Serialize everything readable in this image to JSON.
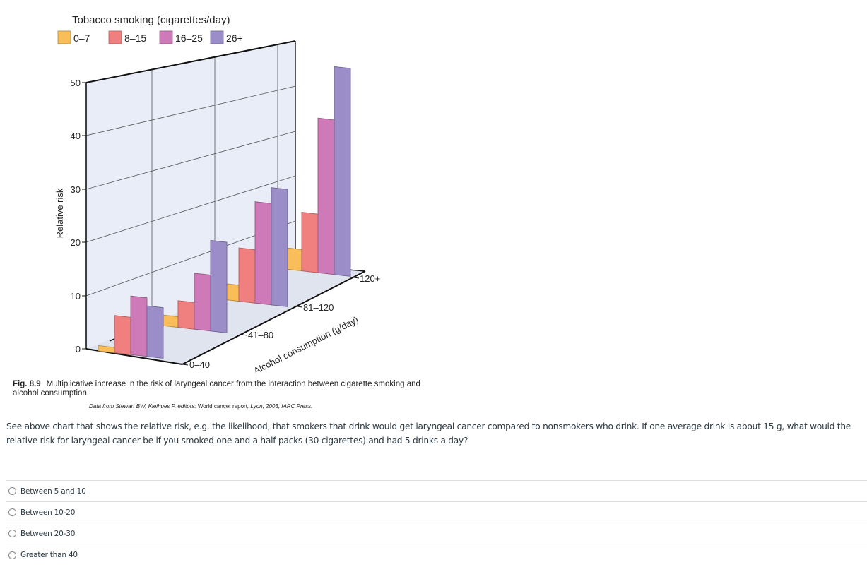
{
  "chart_data": {
    "type": "bar",
    "subtype": "3d-grouped-bar",
    "title": "Tobacco smoking (cigarettes/day)",
    "legend_title": "Tobacco smoking (cigarettes/day)",
    "legend_position": "top-left",
    "ylabel": "Relative risk",
    "xlabel": "Alcohol consumption (g/day)",
    "yticks": [
      "0",
      "10",
      "20",
      "30",
      "40",
      "50"
    ],
    "ylim": [
      0,
      50
    ],
    "grid": true,
    "categories": [
      "0–40",
      "41–80",
      "81–120",
      "120+"
    ],
    "series": [
      {
        "name": "0–7",
        "color": "#f9bd5a",
        "values": [
          1,
          2,
          3,
          4
        ]
      },
      {
        "name": "8–15",
        "color": "#f08080",
        "values": [
          7,
          5,
          10,
          11
        ]
      },
      {
        "name": "16–25",
        "color": "#cf7ab8",
        "values": [
          11,
          10.5,
          19,
          29
        ]
      },
      {
        "name": "26+",
        "color": "#9b8dc7",
        "values": [
          9.5,
          17,
          22,
          39
        ]
      }
    ]
  },
  "legend": {
    "title": "Tobacco smoking (cigarettes/day)",
    "items": [
      {
        "label": "0–7",
        "color": "#f9bd5a"
      },
      {
        "label": "8–15",
        "color": "#f08080"
      },
      {
        "label": "16–25",
        "color": "#cf7ab8"
      },
      {
        "label": "26+",
        "color": "#9b8dc7"
      }
    ]
  },
  "axis": {
    "y_label": "Relative risk",
    "y_ticks": [
      "0",
      "10",
      "20",
      "30",
      "40",
      "50"
    ],
    "x_label": "Alcohol consumption (g/day)",
    "x_ticks": [
      "0–40",
      "41–80",
      "81–120",
      "120+"
    ]
  },
  "caption": {
    "fig_label": "Fig. 8.9",
    "text": "Multiplicative increase in the risk of laryngeal cancer from the interaction between cigarette smoking and alcohol consumption.",
    "source_prefix": "Data from Stewart BW, Kleihues P, editors: ",
    "source_title": "World cancer report",
    "source_suffix": ", Lyon, 2003, IARC Press."
  },
  "question": {
    "text": "See above chart that shows the relative risk, e.g. the likelihood, that smokers that drink would get laryngeal cancer compared to nonsmokers who drink. If one average drink is about 15 g, what would the relative risk for laryngeal cancer be if you smoked one and a half packs (30 cigarettes) and had 5 drinks a day?"
  },
  "answers": [
    {
      "label": "Between 5 and 10",
      "selected": false
    },
    {
      "label": "Between 10-20",
      "selected": false
    },
    {
      "label": "Between 20-30",
      "selected": false
    },
    {
      "label": "Greater than 40",
      "selected": false
    }
  ],
  "colors": {
    "wall": "#e9edf8",
    "floor": "#dfe4ee",
    "axis_line": "#111111",
    "grid_line": "#444444",
    "bar_stroke": "#6b5a7a"
  }
}
